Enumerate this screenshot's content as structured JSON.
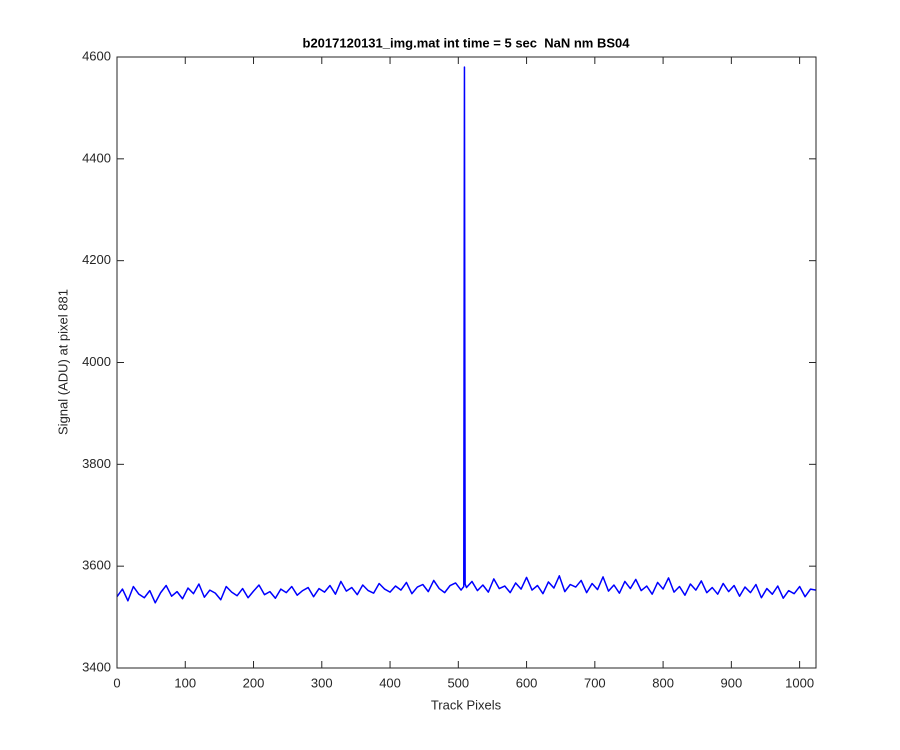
{
  "chart_data": {
    "type": "line",
    "title": "b2017120131_img.mat int time = 5 sec  NaN nm BS04",
    "x_label": "Track Pixels",
    "y_label": "Signal (ADU) at pixel 881",
    "color": "#0000ff",
    "xlim": [
      0,
      1024
    ],
    "ylim": [
      3400,
      4600
    ],
    "xticks": [
      0,
      100,
      200,
      300,
      400,
      500,
      600,
      700,
      800,
      900,
      1000
    ],
    "yticks": [
      3400,
      3600,
      3800,
      4000,
      4200,
      4400,
      4600
    ],
    "x": [
      0,
      8,
      16,
      24,
      32,
      40,
      48,
      56,
      64,
      72,
      80,
      88,
      96,
      104,
      112,
      120,
      128,
      136,
      144,
      152,
      160,
      168,
      176,
      184,
      192,
      200,
      208,
      216,
      224,
      232,
      240,
      248,
      256,
      264,
      272,
      280,
      288,
      296,
      304,
      312,
      320,
      328,
      336,
      344,
      352,
      360,
      368,
      376,
      384,
      392,
      400,
      408,
      416,
      424,
      432,
      440,
      448,
      456,
      464,
      472,
      480,
      488,
      496,
      504,
      508,
      509,
      510,
      512,
      520,
      528,
      536,
      544,
      552,
      560,
      568,
      576,
      584,
      592,
      600,
      608,
      616,
      624,
      632,
      640,
      648,
      656,
      664,
      672,
      680,
      688,
      696,
      704,
      712,
      720,
      728,
      736,
      744,
      752,
      760,
      768,
      776,
      784,
      792,
      800,
      808,
      816,
      824,
      832,
      840,
      848,
      856,
      864,
      872,
      880,
      888,
      896,
      904,
      912,
      920,
      928,
      936,
      944,
      952,
      960,
      968,
      976,
      984,
      992,
      1000,
      1008,
      1016,
      1024
    ],
    "values": [
      3540,
      3555,
      3532,
      3560,
      3545,
      3538,
      3552,
      3528,
      3548,
      3562,
      3541,
      3550,
      3536,
      3557,
      3546,
      3565,
      3539,
      3553,
      3547,
      3534,
      3560,
      3549,
      3542,
      3556,
      3538,
      3551,
      3563,
      3544,
      3550,
      3537,
      3555,
      3548,
      3560,
      3543,
      3552,
      3558,
      3540,
      3556,
      3549,
      3562,
      3545,
      3570,
      3551,
      3558,
      3544,
      3563,
      3552,
      3547,
      3566,
      3555,
      3549,
      3561,
      3553,
      3568,
      3546,
      3559,
      3564,
      3550,
      3572,
      3556,
      3548,
      3562,
      3567,
      3553,
      3560,
      4580,
      3565,
      3558,
      3570,
      3552,
      3563,
      3549,
      3575,
      3556,
      3561,
      3548,
      3567,
      3555,
      3578,
      3553,
      3562,
      3546,
      3569,
      3557,
      3581,
      3550,
      3564,
      3559,
      3572,
      3548,
      3566,
      3554,
      3579,
      3551,
      3563,
      3547,
      3570,
      3556,
      3574,
      3552,
      3561,
      3545,
      3568,
      3555,
      3577,
      3549,
      3560,
      3543,
      3565,
      3553,
      3571,
      3548,
      3558,
      3545,
      3566,
      3550,
      3562,
      3541,
      3559,
      3548,
      3564,
      3538,
      3556,
      3545,
      3561,
      3537,
      3552,
      3546,
      3560,
      3540,
      3555,
      3553
    ]
  }
}
